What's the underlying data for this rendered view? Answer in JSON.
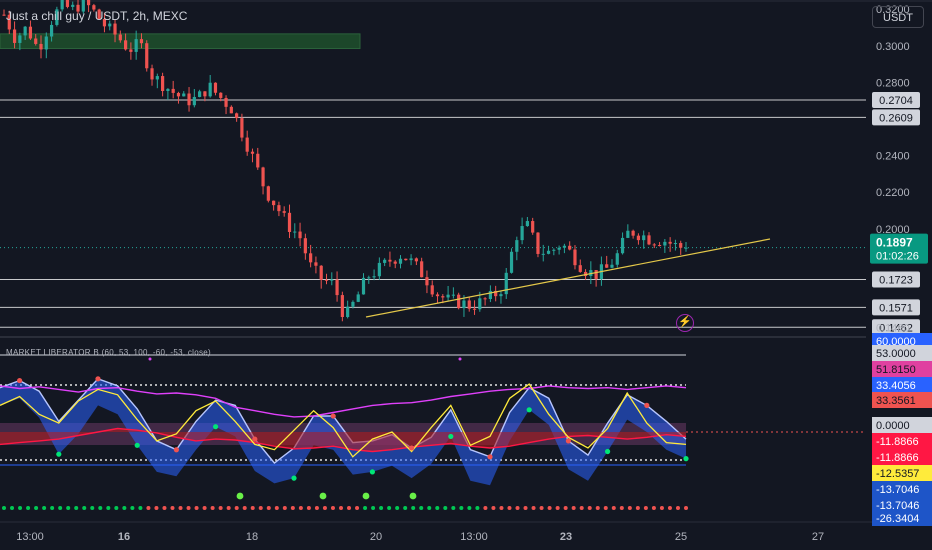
{
  "header": {
    "title": "Just a chill guy / USDT, 2h, MEXC",
    "currency_button": "USDT"
  },
  "chart_data": [
    {
      "type": "candlestick",
      "title": "Just a chill guy / USDT, 2h, MEXC",
      "x_tick_labels": [
        "13:00",
        "16",
        "18",
        "20",
        "13:00",
        "23",
        "25",
        "27"
      ],
      "y_tick_labels": [
        "0.3200",
        "0.3000",
        "0.2800",
        "0.2400",
        "0.2200",
        "0.2000",
        "0.1460"
      ],
      "ylim": [
        0.142,
        0.325
      ],
      "current_price": {
        "price": "0.1897",
        "countdown": "01:02:26",
        "value": 0.1897
      },
      "horizontal_levels": [
        {
          "label": "0.2704",
          "value": 0.2704
        },
        {
          "label": "0.2609",
          "value": 0.2609
        },
        {
          "label": "0.1723",
          "value": 0.1723
        },
        {
          "label": "0.1571",
          "value": 0.1571
        },
        {
          "label": "0.1462",
          "value": 0.1462
        }
      ],
      "supply_zone": [
        0.2985,
        0.3065
      ],
      "close_path": [
        0.317,
        0.304,
        0.31,
        0.298,
        0.312,
        0.322,
        0.32,
        0.324,
        0.318,
        0.31,
        0.305,
        0.298,
        0.301,
        0.284,
        0.279,
        0.274,
        0.27,
        0.271,
        0.278,
        0.272,
        0.266,
        0.252,
        0.237,
        0.221,
        0.212,
        0.202,
        0.196,
        0.179,
        0.172,
        0.17,
        0.151,
        0.162,
        0.174,
        0.178,
        0.183,
        0.186,
        0.181,
        0.174,
        0.165,
        0.161,
        0.16,
        0.158,
        0.16,
        0.163,
        0.169,
        0.196,
        0.202,
        0.188,
        0.187,
        0.192,
        0.186,
        0.178,
        0.175,
        0.178,
        0.186,
        0.199,
        0.197,
        0.194,
        0.194,
        0.191,
        0.189
      ]
    },
    {
      "type": "line",
      "title": "MARKET LIBERATOR B (60, 53, 100, -60, -53, close)",
      "y_tick_labels": [
        "60.0000",
        "53.0000",
        "51.8150",
        "33.4056",
        "33.3561",
        "0.0000",
        "-11.8866",
        "-11.8866",
        "-12.5357",
        "-13.7046",
        "-13.7046",
        "-26.3404"
      ],
      "ylim": [
        -70,
        70
      ],
      "reference_levels": [
        53,
        33.4,
        -53,
        -60
      ],
      "pink_line": [
        52,
        49,
        51,
        48,
        45,
        49,
        50,
        46,
        43,
        44,
        42,
        38,
        28,
        24,
        20,
        17,
        18,
        22,
        26,
        30,
        32,
        33,
        36,
        40,
        43,
        46,
        48,
        49,
        52,
        50,
        49,
        50,
        48,
        50,
        52,
        50
      ],
      "red_line": [
        -14,
        -12,
        -10,
        -8,
        -4,
        0,
        4,
        2,
        -1,
        -6,
        -10,
        -8,
        -9,
        -12,
        -16,
        -19,
        -18,
        -16,
        -20,
        -22,
        -20,
        -17,
        -15,
        -13,
        -16,
        -18,
        -16,
        -12,
        -8,
        -5,
        -4,
        -6,
        -8,
        -6,
        -3,
        -5
      ],
      "yellow_line": [
        30,
        40,
        20,
        10,
        35,
        48,
        42,
        14,
        -10,
        -2,
        24,
        35,
        12,
        -14,
        -20,
        2,
        24,
        5,
        -28,
        -8,
        0,
        -22,
        5,
        30,
        -15,
        -5,
        38,
        54,
        20,
        -6,
        -18,
        4,
        44,
        10,
        -12,
        -14
      ],
      "oscillator_band": [
        [
          50,
          30
        ],
        [
          58,
          38
        ],
        [
          46,
          16
        ],
        [
          12,
          -25
        ],
        [
          36,
          -2
        ],
        [
          60,
          30
        ],
        [
          52,
          20
        ],
        [
          26,
          -15
        ],
        [
          -10,
          -45
        ],
        [
          -20,
          -50
        ],
        [
          12,
          -20
        ],
        [
          36,
          6
        ],
        [
          30,
          -5
        ],
        [
          -8,
          -44
        ],
        [
          -35,
          -58
        ],
        [
          -18,
          -52
        ],
        [
          18,
          -15
        ],
        [
          18,
          -20
        ],
        [
          -12,
          -48
        ],
        [
          -10,
          -45
        ],
        [
          -3,
          -38
        ],
        [
          -18,
          -52
        ],
        [
          -6,
          -36
        ],
        [
          25,
          -5
        ],
        [
          -20,
          -55
        ],
        [
          -28,
          -60
        ],
        [
          22,
          -10
        ],
        [
          50,
          25
        ],
        [
          38,
          8
        ],
        [
          -10,
          -42
        ],
        [
          -26,
          -55
        ],
        [
          10,
          -22
        ],
        [
          42,
          14
        ],
        [
          30,
          0
        ],
        [
          12,
          -20
        ],
        [
          -8,
          -30
        ]
      ],
      "signal_bar_count": 86
    }
  ]
}
